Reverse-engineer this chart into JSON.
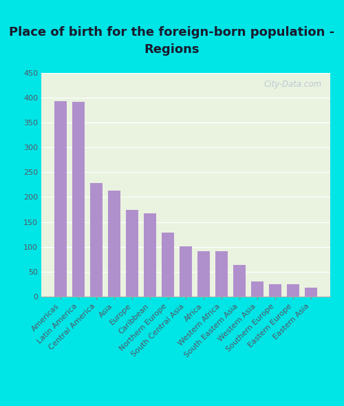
{
  "title": "Place of birth for the foreign-born population -\nRegions",
  "categories": [
    "Americas",
    "Latin America",
    "Central America",
    "Asia",
    "Europe",
    "Caribbean",
    "Northern Europe",
    "South Central Asia",
    "Africa",
    "Western Africa",
    "South Eastern Asia",
    "Western Asia",
    "Southern Europe",
    "Eastern Europe",
    "Eastern Asia"
  ],
  "values": [
    393,
    392,
    228,
    213,
    175,
    167,
    129,
    101,
    91,
    91,
    63,
    30,
    25,
    25,
    18
  ],
  "bar_color": "#b090cc",
  "bg_outer": "#00e5e5",
  "bg_plot": "#eaf2e0",
  "ylim": [
    0,
    450
  ],
  "yticks": [
    0,
    50,
    100,
    150,
    200,
    250,
    300,
    350,
    400,
    450
  ],
  "title_fontsize": 13,
  "tick_fontsize": 8,
  "ytick_fontsize": 8,
  "watermark_text": "City-Data.com",
  "title_color": "#1a1a2e"
}
